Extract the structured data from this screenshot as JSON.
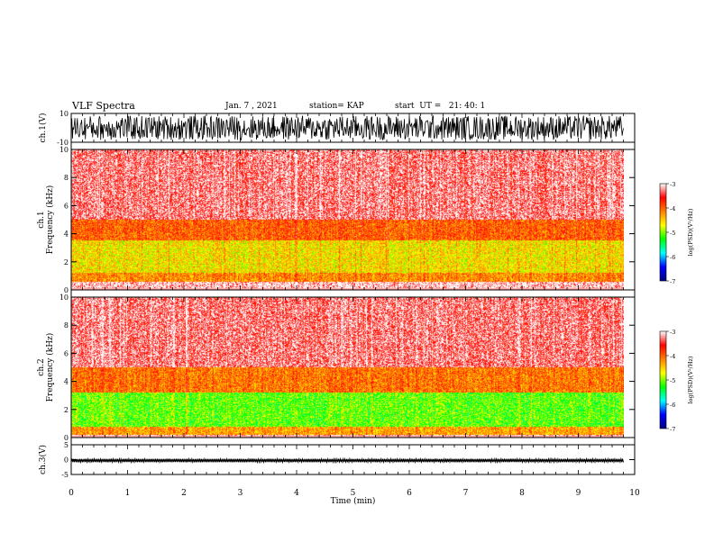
{
  "header": {
    "title": "VLF Spectra",
    "date": "Jan. 7 , 2021",
    "station": "station= KAP",
    "start": "start  UT =   21: 40: 1"
  },
  "colorbar": {
    "label": "log(PSD)(V²/Hz)",
    "ticks": [
      "-3",
      "-4",
      "-5",
      "-6",
      "-7"
    ],
    "stops": [
      "#000080",
      "#0000ff",
      "#00ffff",
      "#00ff00",
      "#ffff00",
      "#ff7f00",
      "#ff0000",
      "#ffffff"
    ]
  },
  "chart_data": [
    {
      "type": "line",
      "panel": "ch1-waveform",
      "ylabel": "ch.1(V)",
      "ylim": [
        -10,
        10
      ],
      "yticks": [
        "10",
        "-10"
      ],
      "xlim": [
        0,
        10
      ],
      "description_values": "dense oscillating waveform spanning roughly -8 to 8 V"
    },
    {
      "type": "heatmap",
      "panel": "ch1-spectrogram",
      "ylabel": "ch.1 Frequency (kHz)",
      "ylim": [
        0,
        10
      ],
      "yticks": [
        "0",
        "2",
        "4",
        "6",
        "8",
        "10"
      ],
      "xlim": [
        0,
        9.8
      ],
      "zlabel": "log(PSD)(V²/Hz)",
      "zlim": [
        -7,
        -3
      ],
      "bands": [
        {
          "freq_khz": [
            0.6,
            1.2
          ],
          "log_psd": -4.2
        },
        {
          "freq_khz": [
            1.2,
            3.5
          ],
          "log_psd": -4.6
        },
        {
          "freq_khz": [
            3.5,
            5.0
          ],
          "log_psd": -4.0
        },
        {
          "freq_khz": [
            5.0,
            10.0
          ],
          "log_psd": -3.3
        }
      ]
    },
    {
      "type": "heatmap",
      "panel": "ch2-spectrogram",
      "ylabel": "ch.2 Frequency (kHz)",
      "ylim": [
        0,
        10
      ],
      "yticks": [
        "0",
        "2",
        "4",
        "6",
        "8",
        "10"
      ],
      "xlim": [
        0,
        9.8
      ],
      "zlabel": "log(PSD)(V²/Hz)",
      "zlim": [
        -7,
        -3
      ],
      "bands": [
        {
          "freq_khz": [
            0.2,
            0.8
          ],
          "log_psd": -4.3
        },
        {
          "freq_khz": [
            0.8,
            3.2
          ],
          "log_psd": -5.1
        },
        {
          "freq_khz": [
            3.2,
            5.0
          ],
          "log_psd": -4.1
        },
        {
          "freq_khz": [
            5.0,
            10.0
          ],
          "log_psd": -3.3
        }
      ]
    },
    {
      "type": "line",
      "panel": "ch3-waveform",
      "ylabel": "ch.3(V)",
      "ylim": [
        -5,
        5
      ],
      "yticks": [
        "5",
        "0",
        "-5"
      ],
      "xlim": [
        0,
        10
      ],
      "mean_value": -0.3,
      "amplitude": 0.6
    }
  ],
  "xaxis": {
    "label": "Time  (min)",
    "ticks": [
      "0",
      "1",
      "2",
      "3",
      "4",
      "5",
      "6",
      "7",
      "8",
      "9",
      "10"
    ],
    "xlim": [
      0,
      10
    ],
    "data_end": 9.8
  }
}
